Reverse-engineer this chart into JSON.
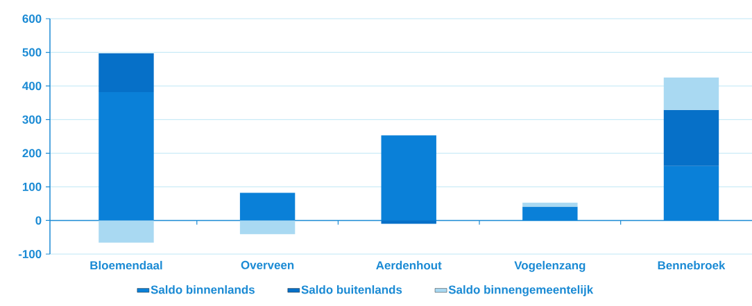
{
  "chart_data": {
    "type": "bar",
    "stacked": true,
    "categories": [
      "Bloemendaal",
      "Overveen",
      "Aerdenhout",
      "Vogelenzang",
      "Bennebroek"
    ],
    "series": [
      {
        "name": "Saldo binnenlands",
        "color": "#0a80d8",
        "values": [
          382,
          82,
          253,
          41,
          162
        ]
      },
      {
        "name": "Saldo buitenlands",
        "color": "#0670c8",
        "values": [
          115,
          0,
          -10,
          0,
          167
        ]
      },
      {
        "name": "Saldo binnengemeentelijk",
        "color": "#a9d9f2",
        "values": [
          -66,
          -41,
          0,
          12,
          96
        ]
      }
    ],
    "ylim": [
      -100,
      600
    ],
    "yticks": [
      -100,
      0,
      100,
      200,
      300,
      400,
      500,
      600
    ],
    "ref_lines": [
      {
        "axis": "y",
        "value": 0,
        "color": "#1a8ad4"
      }
    ],
    "grid": "y",
    "legend": "bottom"
  }
}
